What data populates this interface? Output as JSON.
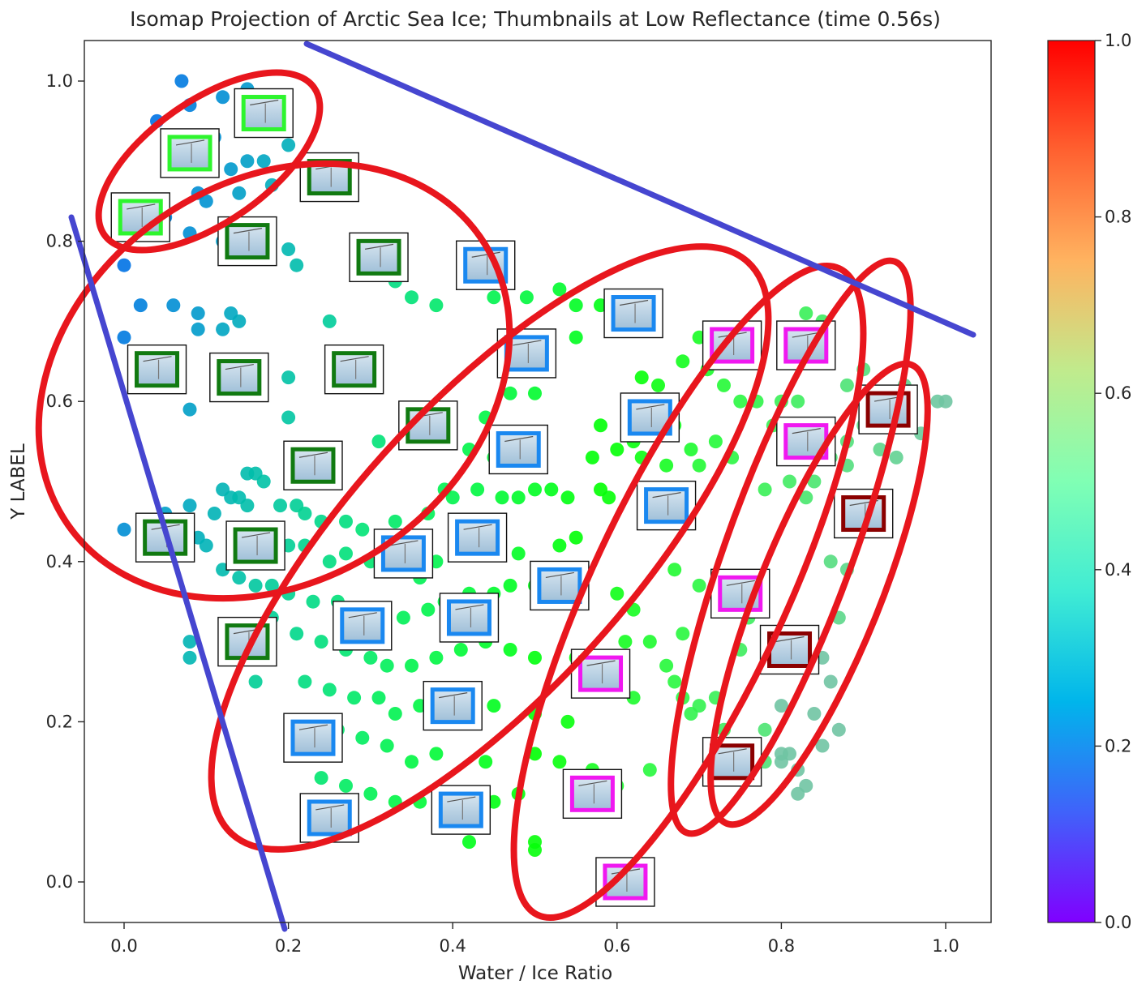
{
  "chart_data": {
    "type": "scatter",
    "title": "Isomap Projection of Arctic Sea Ice; Thumbnails at Low Reflectance (time 0.56s)",
    "xlabel": "Water / Ice Ratio",
    "ylabel": "Y LABEL",
    "xlim": [
      -0.05,
      1.05
    ],
    "ylim": [
      -0.05,
      1.05
    ],
    "xticks": [
      "0.0",
      "0.2",
      "0.4",
      "0.6",
      "0.8",
      "1.0"
    ],
    "yticks": [
      "0.0",
      "0.2",
      "0.4",
      "0.6",
      "0.8",
      "1.0"
    ],
    "colormap": "rainbow",
    "colorbar": {
      "range": [
        0.0,
        1.0
      ],
      "ticks": [
        "0.0",
        "0.2",
        "0.4",
        "0.6",
        "0.8",
        "1.0"
      ]
    },
    "grid": false,
    "points": [
      [
        0.07,
        1.0
      ],
      [
        0.08,
        0.97
      ],
      [
        0.04,
        0.95
      ],
      [
        0.12,
        0.98
      ],
      [
        0.15,
        0.99
      ],
      [
        0.11,
        0.93
      ],
      [
        0.06,
        0.92
      ],
      [
        0.13,
        0.89
      ],
      [
        0.15,
        0.9
      ],
      [
        0.17,
        0.9
      ],
      [
        0.2,
        0.92
      ],
      [
        0.22,
        0.9
      ],
      [
        0.18,
        0.87
      ],
      [
        0.09,
        0.86
      ],
      [
        0.1,
        0.85
      ],
      [
        0.14,
        0.86
      ],
      [
        0.16,
        0.82
      ],
      [
        0.05,
        0.83
      ],
      [
        0.08,
        0.81
      ],
      [
        0.12,
        0.8
      ],
      [
        0.2,
        0.79
      ],
      [
        0.21,
        0.77
      ],
      [
        0.03,
        0.81
      ],
      [
        0.0,
        0.77
      ],
      [
        0.02,
        0.72
      ],
      [
        0.06,
        0.72
      ],
      [
        0.09,
        0.71
      ],
      [
        0.13,
        0.71
      ],
      [
        0.14,
        0.7
      ],
      [
        0.09,
        0.69
      ],
      [
        0.12,
        0.69
      ],
      [
        0.0,
        0.68
      ],
      [
        0.03,
        0.66
      ],
      [
        0.25,
        0.7
      ],
      [
        0.33,
        0.75
      ],
      [
        0.35,
        0.73
      ],
      [
        0.38,
        0.72
      ],
      [
        0.45,
        0.73
      ],
      [
        0.49,
        0.73
      ],
      [
        0.53,
        0.74
      ],
      [
        0.55,
        0.72
      ],
      [
        0.28,
        0.65
      ],
      [
        0.3,
        0.66
      ],
      [
        0.2,
        0.63
      ],
      [
        0.08,
        0.59
      ],
      [
        0.2,
        0.58
      ],
      [
        0.31,
        0.55
      ],
      [
        0.25,
        0.53
      ],
      [
        0.15,
        0.51
      ],
      [
        0.16,
        0.51
      ],
      [
        0.17,
        0.5
      ],
      [
        0.12,
        0.49
      ],
      [
        0.13,
        0.48
      ],
      [
        0.14,
        0.48
      ],
      [
        0.15,
        0.47
      ],
      [
        0.08,
        0.47
      ],
      [
        0.11,
        0.46
      ],
      [
        0.19,
        0.47
      ],
      [
        0.21,
        0.47
      ],
      [
        0.22,
        0.46
      ],
      [
        0.24,
        0.45
      ],
      [
        0.27,
        0.45
      ],
      [
        0.29,
        0.44
      ],
      [
        0.33,
        0.45
      ],
      [
        0.37,
        0.46
      ],
      [
        0.4,
        0.48
      ],
      [
        0.43,
        0.49
      ],
      [
        0.46,
        0.48
      ],
      [
        0.5,
        0.49
      ],
      [
        0.52,
        0.49
      ],
      [
        0.54,
        0.48
      ],
      [
        0.58,
        0.49
      ],
      [
        0.59,
        0.48
      ],
      [
        0.05,
        0.46
      ],
      [
        0.03,
        0.45
      ],
      [
        0.0,
        0.44
      ],
      [
        0.09,
        0.43
      ],
      [
        0.1,
        0.42
      ],
      [
        0.2,
        0.42
      ],
      [
        0.22,
        0.42
      ],
      [
        0.25,
        0.4
      ],
      [
        0.27,
        0.41
      ],
      [
        0.3,
        0.4
      ],
      [
        0.33,
        0.39
      ],
      [
        0.36,
        0.38
      ],
      [
        0.38,
        0.4
      ],
      [
        0.42,
        0.41
      ],
      [
        0.45,
        0.41
      ],
      [
        0.48,
        0.41
      ],
      [
        0.53,
        0.42
      ],
      [
        0.55,
        0.43
      ],
      [
        0.12,
        0.39
      ],
      [
        0.14,
        0.38
      ],
      [
        0.16,
        0.37
      ],
      [
        0.18,
        0.37
      ],
      [
        0.2,
        0.36
      ],
      [
        0.23,
        0.35
      ],
      [
        0.26,
        0.35
      ],
      [
        0.29,
        0.34
      ],
      [
        0.31,
        0.33
      ],
      [
        0.34,
        0.33
      ],
      [
        0.37,
        0.34
      ],
      [
        0.39,
        0.35
      ],
      [
        0.42,
        0.36
      ],
      [
        0.45,
        0.36
      ],
      [
        0.47,
        0.37
      ],
      [
        0.5,
        0.37
      ],
      [
        0.53,
        0.38
      ],
      [
        0.56,
        0.38
      ],
      [
        0.6,
        0.36
      ],
      [
        0.62,
        0.34
      ],
      [
        0.18,
        0.33
      ],
      [
        0.21,
        0.31
      ],
      [
        0.24,
        0.3
      ],
      [
        0.27,
        0.29
      ],
      [
        0.3,
        0.28
      ],
      [
        0.32,
        0.27
      ],
      [
        0.35,
        0.27
      ],
      [
        0.38,
        0.28
      ],
      [
        0.41,
        0.29
      ],
      [
        0.44,
        0.3
      ],
      [
        0.47,
        0.29
      ],
      [
        0.5,
        0.28
      ],
      [
        0.08,
        0.3
      ],
      [
        0.08,
        0.28
      ],
      [
        0.16,
        0.25
      ],
      [
        0.22,
        0.25
      ],
      [
        0.25,
        0.24
      ],
      [
        0.28,
        0.23
      ],
      [
        0.31,
        0.23
      ],
      [
        0.33,
        0.21
      ],
      [
        0.36,
        0.22
      ],
      [
        0.42,
        0.23
      ],
      [
        0.45,
        0.22
      ],
      [
        0.5,
        0.21
      ],
      [
        0.54,
        0.2
      ],
      [
        0.23,
        0.2
      ],
      [
        0.26,
        0.19
      ],
      [
        0.29,
        0.18
      ],
      [
        0.32,
        0.17
      ],
      [
        0.35,
        0.15
      ],
      [
        0.38,
        0.16
      ],
      [
        0.44,
        0.15
      ],
      [
        0.5,
        0.16
      ],
      [
        0.53,
        0.15
      ],
      [
        0.57,
        0.14
      ],
      [
        0.24,
        0.13
      ],
      [
        0.27,
        0.12
      ],
      [
        0.3,
        0.11
      ],
      [
        0.33,
        0.1
      ],
      [
        0.36,
        0.1
      ],
      [
        0.41,
        0.09
      ],
      [
        0.45,
        0.1
      ],
      [
        0.48,
        0.11
      ],
      [
        0.6,
        0.12
      ],
      [
        0.64,
        0.14
      ],
      [
        0.67,
        0.25
      ],
      [
        0.68,
        0.23
      ],
      [
        0.7,
        0.22
      ],
      [
        0.72,
        0.23
      ],
      [
        0.66,
        0.27
      ],
      [
        0.64,
        0.3
      ],
      [
        0.68,
        0.31
      ],
      [
        0.61,
        0.3
      ],
      [
        0.55,
        0.28
      ],
      [
        0.57,
        0.24
      ],
      [
        0.62,
        0.23
      ],
      [
        0.5,
        0.05
      ],
      [
        0.5,
        0.04
      ],
      [
        0.42,
        0.05
      ],
      [
        0.6,
        0.01
      ],
      [
        0.67,
        0.39
      ],
      [
        0.7,
        0.37
      ],
      [
        0.74,
        0.35
      ],
      [
        0.76,
        0.33
      ],
      [
        0.75,
        0.29
      ],
      [
        0.78,
        0.27
      ],
      [
        0.8,
        0.22
      ],
      [
        0.78,
        0.19
      ],
      [
        0.73,
        0.19
      ],
      [
        0.69,
        0.21
      ],
      [
        0.81,
        0.16
      ],
      [
        0.8,
        0.15
      ],
      [
        0.8,
        0.16
      ],
      [
        0.85,
        0.17
      ],
      [
        0.87,
        0.19
      ],
      [
        0.82,
        0.14
      ],
      [
        0.78,
        0.15
      ],
      [
        0.82,
        0.11
      ],
      [
        0.83,
        0.12
      ],
      [
        0.84,
        0.21
      ],
      [
        0.86,
        0.25
      ],
      [
        0.85,
        0.28
      ],
      [
        0.87,
        0.33
      ],
      [
        0.86,
        0.4
      ],
      [
        0.88,
        0.39
      ],
      [
        0.91,
        0.6
      ],
      [
        0.92,
        0.54
      ],
      [
        0.88,
        0.52
      ],
      [
        0.84,
        0.5
      ],
      [
        0.81,
        0.5
      ],
      [
        0.78,
        0.49
      ],
      [
        0.83,
        0.48
      ],
      [
        0.86,
        0.53
      ],
      [
        0.88,
        0.55
      ],
      [
        0.9,
        0.57
      ],
      [
        0.94,
        0.53
      ],
      [
        0.99,
        0.6
      ],
      [
        1.0,
        0.6
      ],
      [
        0.97,
        0.56
      ],
      [
        0.95,
        0.62
      ],
      [
        0.9,
        0.64
      ],
      [
        0.88,
        0.62
      ],
      [
        0.85,
        0.65
      ],
      [
        0.83,
        0.67
      ],
      [
        0.83,
        0.71
      ],
      [
        0.85,
        0.7
      ],
      [
        0.73,
        0.68
      ],
      [
        0.7,
        0.68
      ],
      [
        0.68,
        0.65
      ],
      [
        0.71,
        0.64
      ],
      [
        0.73,
        0.62
      ],
      [
        0.75,
        0.6
      ],
      [
        0.77,
        0.6
      ],
      [
        0.79,
        0.57
      ],
      [
        0.8,
        0.6
      ],
      [
        0.82,
        0.6
      ],
      [
        0.67,
        0.57
      ],
      [
        0.64,
        0.56
      ],
      [
        0.62,
        0.55
      ],
      [
        0.6,
        0.54
      ],
      [
        0.58,
        0.57
      ],
      [
        0.57,
        0.53
      ],
      [
        0.63,
        0.53
      ],
      [
        0.66,
        0.52
      ],
      [
        0.69,
        0.54
      ],
      [
        0.72,
        0.55
      ],
      [
        0.7,
        0.52
      ],
      [
        0.74,
        0.53
      ],
      [
        0.65,
        0.62
      ],
      [
        0.63,
        0.63
      ],
      [
        0.64,
        0.6
      ],
      [
        0.55,
        0.68
      ],
      [
        0.58,
        0.72
      ],
      [
        0.47,
        0.61
      ],
      [
        0.5,
        0.61
      ],
      [
        0.44,
        0.58
      ],
      [
        0.42,
        0.54
      ],
      [
        0.45,
        0.53
      ],
      [
        0.48,
        0.48
      ],
      [
        0.39,
        0.49
      ],
      [
        0.36,
        0.56
      ]
    ],
    "thumbnail_groups": [
      {
        "frame_color": "#2ef52e",
        "points": [
          [
            0.17,
            0.96
          ],
          [
            0.08,
            0.91
          ],
          [
            0.02,
            0.83
          ]
        ]
      },
      {
        "frame_color": "#117a11",
        "points": [
          [
            0.25,
            0.88
          ],
          [
            0.15,
            0.8
          ],
          [
            0.31,
            0.78
          ],
          [
            0.04,
            0.64
          ],
          [
            0.14,
            0.63
          ],
          [
            0.28,
            0.64
          ],
          [
            0.37,
            0.57
          ],
          [
            0.23,
            0.52
          ],
          [
            0.05,
            0.43
          ],
          [
            0.16,
            0.42
          ],
          [
            0.15,
            0.3
          ]
        ]
      },
      {
        "frame_color": "#1a88f0",
        "points": [
          [
            0.44,
            0.77
          ],
          [
            0.62,
            0.71
          ],
          [
            0.49,
            0.66
          ],
          [
            0.64,
            0.58
          ],
          [
            0.48,
            0.54
          ],
          [
            0.66,
            0.47
          ],
          [
            0.43,
            0.43
          ],
          [
            0.34,
            0.41
          ],
          [
            0.53,
            0.37
          ],
          [
            0.29,
            0.32
          ],
          [
            0.42,
            0.33
          ],
          [
            0.4,
            0.22
          ],
          [
            0.23,
            0.18
          ],
          [
            0.25,
            0.08
          ],
          [
            0.41,
            0.09
          ]
        ]
      },
      {
        "frame_color": "#f018f0",
        "points": [
          [
            0.74,
            0.67
          ],
          [
            0.83,
            0.67
          ],
          [
            0.83,
            0.55
          ],
          [
            0.75,
            0.36
          ],
          [
            0.58,
            0.26
          ],
          [
            0.57,
            0.11
          ],
          [
            0.61,
            0.0
          ]
        ]
      },
      {
        "frame_color": "#8b0000",
        "points": [
          [
            0.93,
            0.59
          ],
          [
            0.9,
            0.46
          ],
          [
            0.81,
            0.29
          ],
          [
            0.74,
            0.15
          ]
        ]
      }
    ]
  }
}
